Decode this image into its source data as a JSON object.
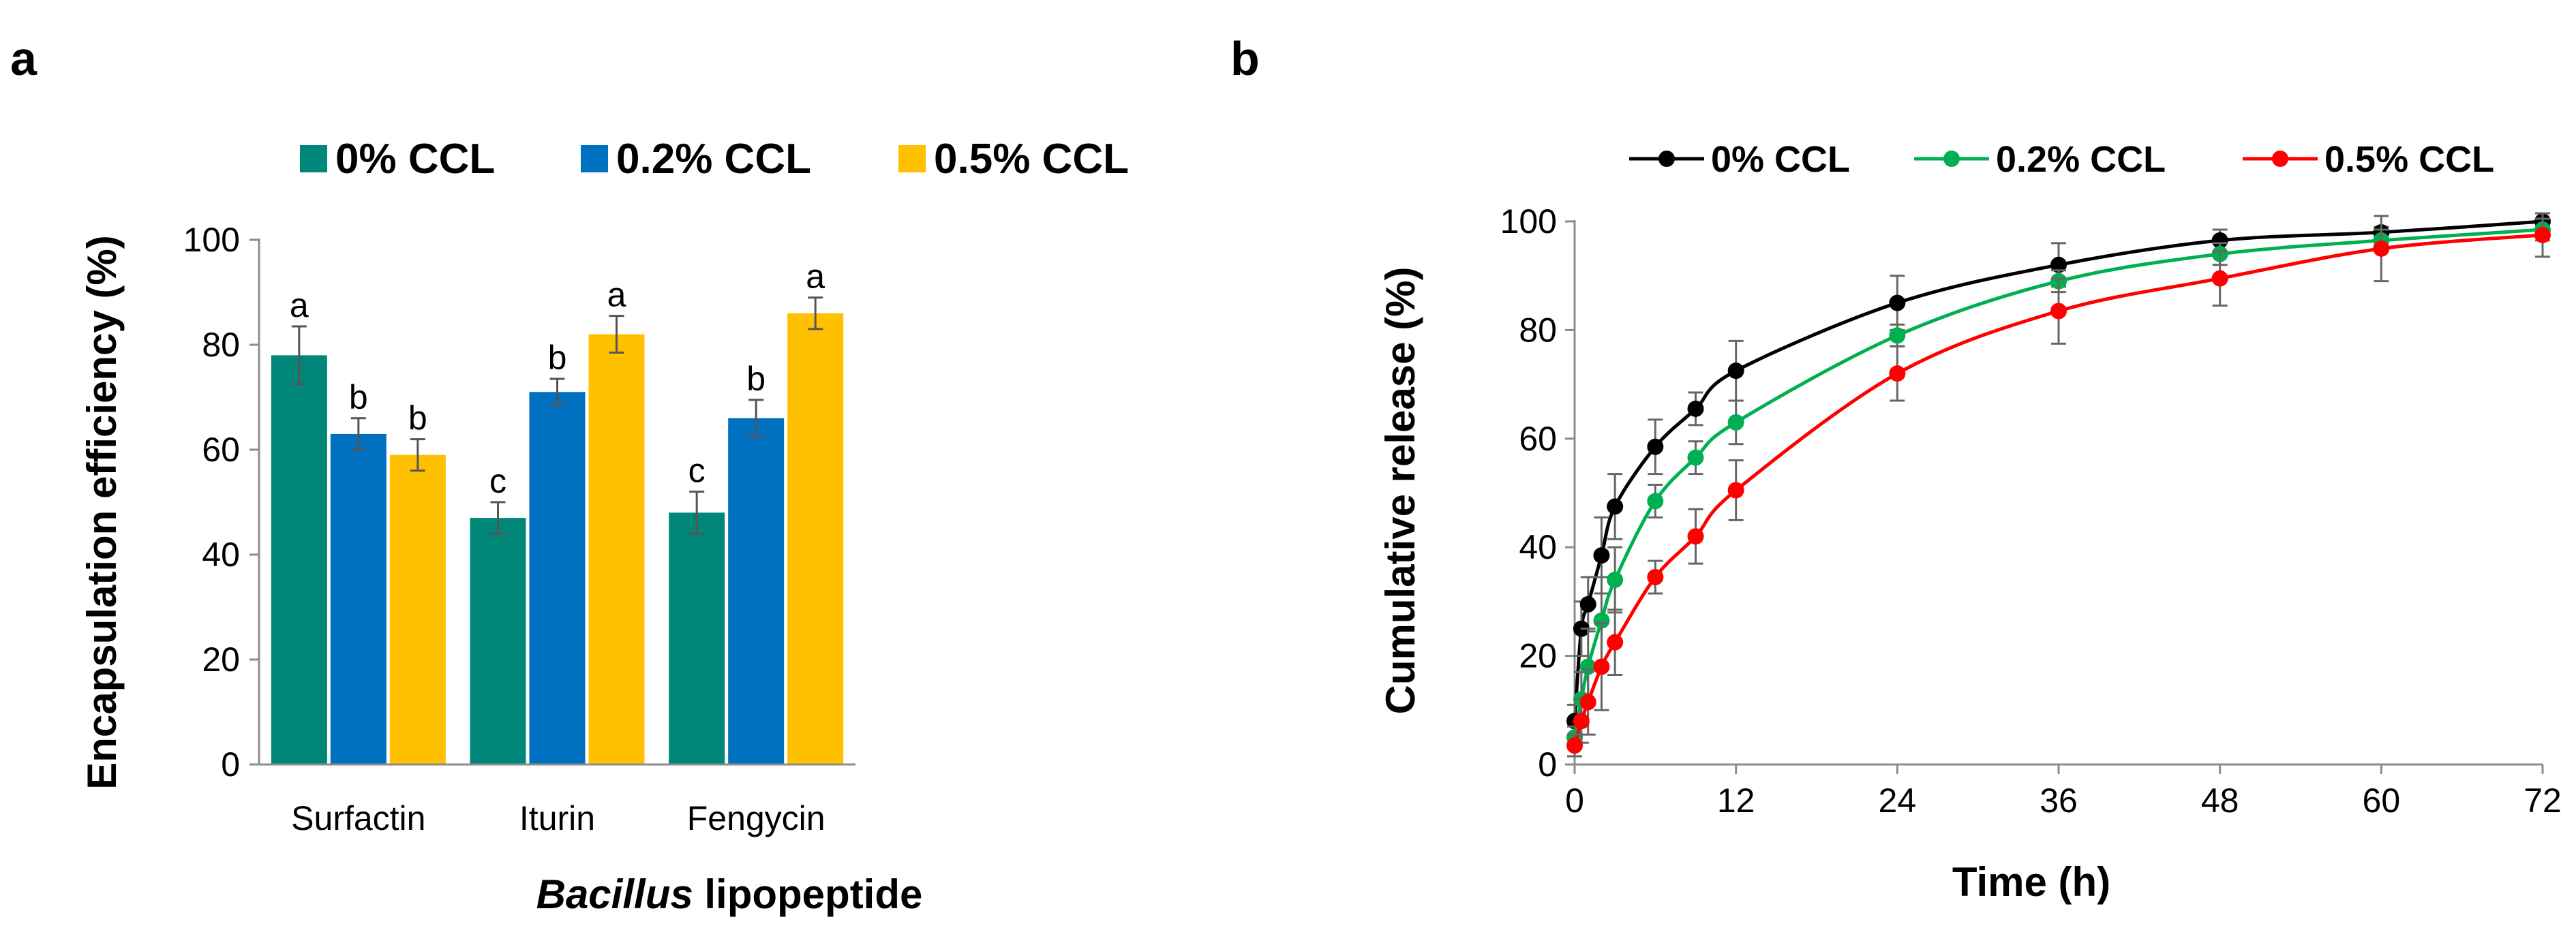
{
  "panels": {
    "a": {
      "letter": "a"
    },
    "b": {
      "letter": "b"
    }
  },
  "chart_data": [
    {
      "type": "bar",
      "title": "",
      "xlabel": {
        "italic": "Bacillus",
        "rest": " lipopeptide"
      },
      "ylabel": "Encapsulation efficiency  (%)",
      "ylim": [
        0,
        100
      ],
      "yticks": [
        0,
        20,
        40,
        60,
        80,
        100
      ],
      "categories": [
        "Surfactin",
        "Iturin",
        "Fengycin"
      ],
      "legend_position": "top",
      "series": [
        {
          "name": "0%  CCL",
          "color": "#00877A",
          "values": [
            78,
            47,
            48
          ],
          "errors": [
            5.5,
            3,
            4
          ],
          "letters": [
            "a",
            "c",
            "c"
          ]
        },
        {
          "name": "0.2%  CCL",
          "color": "#0070C0",
          "values": [
            63,
            71,
            66
          ],
          "errors": [
            3,
            2.5,
            3.5
          ],
          "letters": [
            "b",
            "b",
            "b"
          ]
        },
        {
          "name": "0.5%  CCL",
          "color": "#FFC000",
          "values": [
            59,
            82,
            86
          ],
          "errors": [
            3,
            3.5,
            3
          ],
          "letters": [
            "b",
            "a",
            "a"
          ]
        }
      ]
    },
    {
      "type": "line",
      "title": "",
      "xlabel": "Time (h)",
      "ylabel": "Cumulative release (%)",
      "xlim": [
        0,
        72
      ],
      "ylim": [
        0,
        100
      ],
      "xticks": [
        0,
        12,
        24,
        36,
        48,
        60,
        72
      ],
      "yticks": [
        0,
        20,
        40,
        60,
        80,
        100
      ],
      "legend_position": "top",
      "x": [
        0,
        0.5,
        1,
        2,
        3,
        6,
        9,
        12,
        24,
        36,
        48,
        60,
        72
      ],
      "series": [
        {
          "name": "0% CCL",
          "color": "#000000",
          "values": [
            8,
            25,
            29.5,
            38.5,
            47.5,
            58.5,
            65.5,
            72.5,
            85,
            92,
            96.5,
            98,
            100
          ],
          "errors": [
            3,
            5,
            5,
            7,
            6,
            5,
            3,
            5.5,
            5,
            4,
            2,
            1,
            0.5
          ]
        },
        {
          "name": "0.2% CCL",
          "color": "#00B050",
          "values": [
            5,
            12,
            18,
            26.5,
            34,
            48.5,
            56.5,
            63,
            79,
            89,
            94,
            96.5,
            98.5
          ],
          "errors": [
            2,
            5,
            7,
            8,
            6,
            3,
            3,
            4,
            2,
            2,
            2,
            2,
            2
          ]
        },
        {
          "name": "0.5% CCL",
          "color": "#FF0000",
          "values": [
            3.5,
            8,
            11.5,
            18,
            22.5,
            34.5,
            42,
            50.5,
            72,
            83.5,
            89.5,
            95,
            97.5
          ],
          "errors": [
            2,
            4,
            6,
            8,
            6,
            3,
            5,
            5.5,
            5,
            6,
            5,
            6,
            4
          ]
        }
      ]
    }
  ]
}
